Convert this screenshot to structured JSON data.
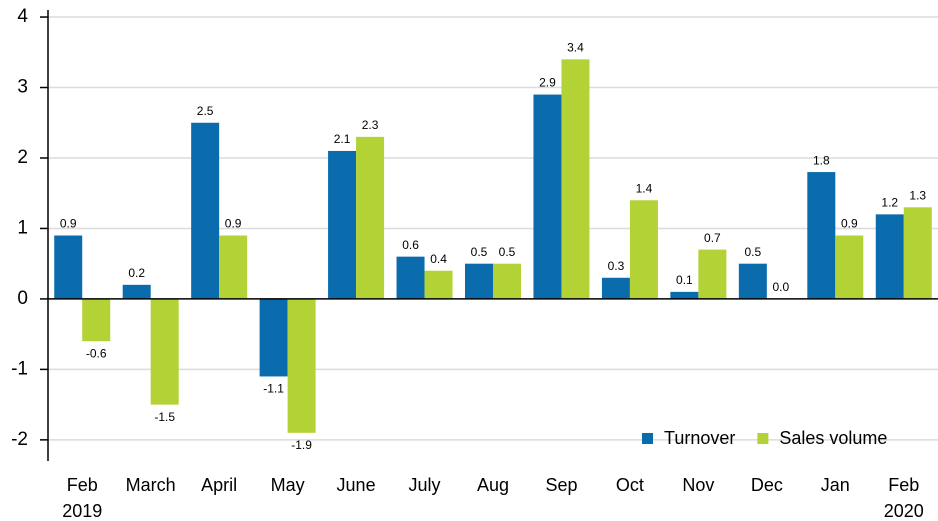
{
  "chart_data": {
    "type": "bar",
    "categories": [
      [
        "Feb",
        "2019"
      ],
      "March",
      "April",
      "May",
      "June",
      "July",
      "Aug",
      "Sep",
      "Oct",
      "Nov",
      "Dec",
      "Jan",
      [
        "Feb",
        "2020"
      ]
    ],
    "series": [
      {
        "name": "Turnover",
        "color": "#0a6cad",
        "values": [
          0.9,
          0.2,
          2.5,
          -1.1,
          2.1,
          0.6,
          0.5,
          2.9,
          0.3,
          0.1,
          0.5,
          1.8,
          1.2
        ]
      },
      {
        "name": "Sales volume",
        "color": "#b3d235",
        "values": [
          -0.6,
          -1.5,
          0.9,
          -1.9,
          2.3,
          0.4,
          0.5,
          3.4,
          1.4,
          0.7,
          0.0,
          0.9,
          1.3
        ],
        "value_labels": [
          "-0.6",
          "-1.5",
          "0.9",
          "-1.9",
          "2.3",
          "0.4",
          "0.5",
          "3.4",
          "1.4",
          "0.7",
          "0.0",
          "0.9",
          "1.3"
        ]
      }
    ],
    "ylim": [
      -2.3,
      4.1
    ],
    "yticks": [
      -2,
      -1,
      0,
      1,
      2,
      3,
      4
    ],
    "grid": true,
    "legend": "lower right"
  }
}
